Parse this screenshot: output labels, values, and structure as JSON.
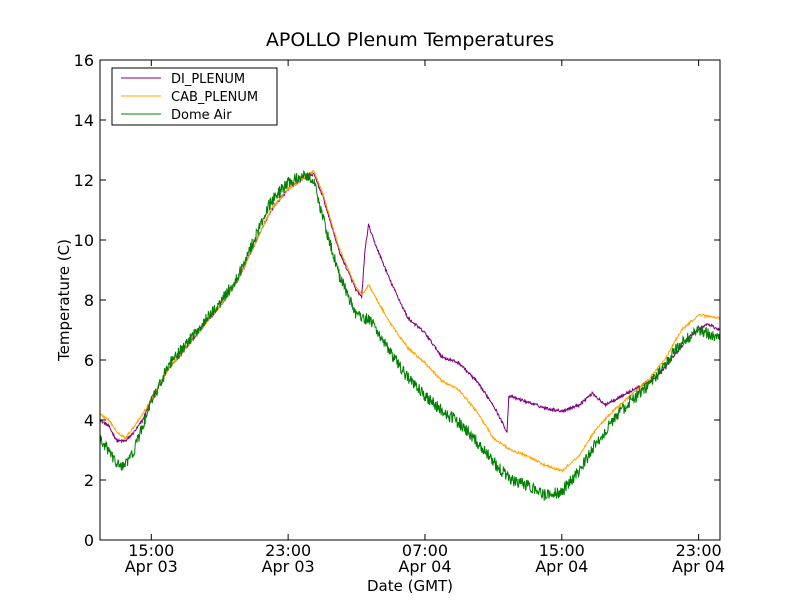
{
  "chart_data": {
    "type": "line",
    "title": "APOLLO Plenum Temperatures",
    "xlabel": "Date (GMT)",
    "ylabel": "Temperature (C)",
    "xlim_hours": [
      12.0,
      24.0,
      36.0
    ],
    "xlim": [
      12.0,
      48.25
    ],
    "ylim": [
      0,
      16
    ],
    "yticks": [
      0,
      2,
      4,
      6,
      8,
      10,
      12,
      14,
      16
    ],
    "xticks": [
      {
        "hour": 15,
        "time": "15:00",
        "date": "Apr 03"
      },
      {
        "hour": 23,
        "time": "23:00",
        "date": "Apr 03"
      },
      {
        "hour": 31,
        "time": "07:00",
        "date": "Apr 04"
      },
      {
        "hour": 39,
        "time": "15:00",
        "date": "Apr 04"
      },
      {
        "hour": 47,
        "time": "23:00",
        "date": "Apr 04"
      }
    ],
    "legend_position": "top-left",
    "series": [
      {
        "name": "DI_PLENUM",
        "color": "#800080",
        "noise": 0.05,
        "points": [
          [
            12.0,
            4.0
          ],
          [
            12.5,
            3.8
          ],
          [
            13.0,
            3.3
          ],
          [
            13.5,
            3.3
          ],
          [
            14.0,
            3.6
          ],
          [
            14.5,
            4.0
          ],
          [
            15.0,
            4.7
          ],
          [
            16.0,
            5.7
          ],
          [
            17.0,
            6.4
          ],
          [
            18.0,
            7.1
          ],
          [
            19.0,
            7.8
          ],
          [
            20.0,
            8.6
          ],
          [
            21.0,
            9.8
          ],
          [
            22.0,
            11.0
          ],
          [
            23.0,
            11.7
          ],
          [
            24.0,
            12.1
          ],
          [
            24.5,
            12.2
          ],
          [
            25.0,
            11.5
          ],
          [
            26.0,
            9.6
          ],
          [
            27.0,
            8.3
          ],
          [
            27.3,
            8.1
          ],
          [
            27.5,
            9.7
          ],
          [
            27.7,
            10.5
          ],
          [
            28.0,
            10.0
          ],
          [
            29.0,
            8.6
          ],
          [
            30.0,
            7.4
          ],
          [
            31.0,
            6.9
          ],
          [
            32.0,
            6.1
          ],
          [
            33.0,
            5.9
          ],
          [
            34.0,
            5.3
          ],
          [
            35.0,
            4.5
          ],
          [
            35.8,
            3.6
          ],
          [
            35.9,
            4.8
          ],
          [
            37.0,
            4.6
          ],
          [
            38.0,
            4.4
          ],
          [
            39.0,
            4.3
          ],
          [
            40.0,
            4.5
          ],
          [
            40.8,
            4.9
          ],
          [
            41.5,
            4.5
          ],
          [
            42.5,
            4.8
          ],
          [
            43.5,
            5.1
          ],
          [
            44.5,
            5.4
          ],
          [
            45.5,
            6.1
          ],
          [
            46.5,
            6.8
          ],
          [
            47.5,
            7.2
          ],
          [
            48.25,
            7.0
          ]
        ]
      },
      {
        "name": "CAB_PLENUM",
        "color": "#FFA500",
        "noise": 0.04,
        "points": [
          [
            12.0,
            4.2
          ],
          [
            12.5,
            4.0
          ],
          [
            13.0,
            3.6
          ],
          [
            13.5,
            3.4
          ],
          [
            14.0,
            3.8
          ],
          [
            14.5,
            4.2
          ],
          [
            15.0,
            4.7
          ],
          [
            16.0,
            5.7
          ],
          [
            17.0,
            6.4
          ],
          [
            18.0,
            7.1
          ],
          [
            19.0,
            7.8
          ],
          [
            20.0,
            8.6
          ],
          [
            21.0,
            9.8
          ],
          [
            22.0,
            11.0
          ],
          [
            23.0,
            11.7
          ],
          [
            24.0,
            12.1
          ],
          [
            24.5,
            12.3
          ],
          [
            25.0,
            11.6
          ],
          [
            26.0,
            9.7
          ],
          [
            27.0,
            8.4
          ],
          [
            27.3,
            8.2
          ],
          [
            27.5,
            8.3
          ],
          [
            27.7,
            8.5
          ],
          [
            28.0,
            8.2
          ],
          [
            29.0,
            7.2
          ],
          [
            30.0,
            6.4
          ],
          [
            31.0,
            5.9
          ],
          [
            32.0,
            5.3
          ],
          [
            33.0,
            5.0
          ],
          [
            34.0,
            4.3
          ],
          [
            35.0,
            3.4
          ],
          [
            36.0,
            3.0
          ],
          [
            37.0,
            2.8
          ],
          [
            38.0,
            2.5
          ],
          [
            39.0,
            2.3
          ],
          [
            40.0,
            2.8
          ],
          [
            41.0,
            3.7
          ],
          [
            42.0,
            4.3
          ],
          [
            43.0,
            4.8
          ],
          [
            44.0,
            5.3
          ],
          [
            45.0,
            6.0
          ],
          [
            46.0,
            7.0
          ],
          [
            47.0,
            7.5
          ],
          [
            48.25,
            7.4
          ]
        ]
      },
      {
        "name": "Dome Air",
        "color": "#008000",
        "noise": 0.2,
        "points": [
          [
            12.0,
            3.3
          ],
          [
            12.5,
            3.0
          ],
          [
            13.0,
            2.5
          ],
          [
            13.5,
            2.5
          ],
          [
            14.0,
            3.0
          ],
          [
            14.5,
            3.8
          ],
          [
            15.0,
            4.6
          ],
          [
            16.0,
            5.8
          ],
          [
            17.0,
            6.5
          ],
          [
            18.0,
            7.2
          ],
          [
            19.0,
            7.9
          ],
          [
            20.0,
            8.7
          ],
          [
            21.0,
            10.0
          ],
          [
            22.0,
            11.3
          ],
          [
            23.0,
            11.9
          ],
          [
            24.0,
            12.2
          ],
          [
            24.5,
            12.0
          ],
          [
            25.0,
            10.8
          ],
          [
            26.0,
            8.8
          ],
          [
            27.0,
            7.5
          ],
          [
            27.5,
            7.4
          ],
          [
            28.0,
            7.2
          ],
          [
            29.0,
            6.2
          ],
          [
            30.0,
            5.4
          ],
          [
            31.0,
            4.8
          ],
          [
            32.0,
            4.3
          ],
          [
            33.0,
            3.9
          ],
          [
            34.0,
            3.3
          ],
          [
            35.0,
            2.6
          ],
          [
            36.0,
            2.0
          ],
          [
            37.0,
            1.8
          ],
          [
            38.0,
            1.5
          ],
          [
            39.0,
            1.6
          ],
          [
            40.0,
            2.3
          ],
          [
            41.0,
            3.2
          ],
          [
            42.0,
            4.0
          ],
          [
            43.0,
            4.6
          ],
          [
            44.0,
            5.1
          ],
          [
            45.0,
            5.8
          ],
          [
            46.0,
            6.6
          ],
          [
            47.0,
            7.0
          ],
          [
            48.25,
            6.7
          ]
        ]
      }
    ]
  }
}
